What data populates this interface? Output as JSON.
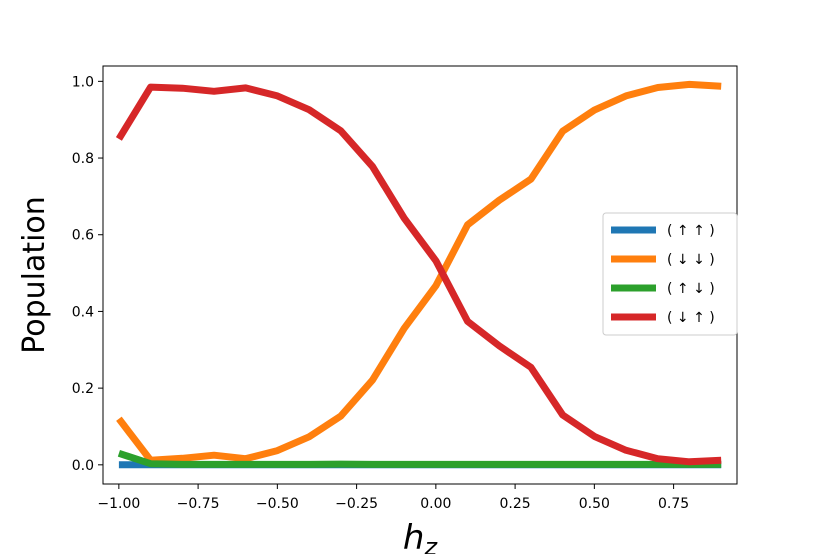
{
  "chart_data": {
    "type": "line",
    "xlabel": "h_z",
    "ylabel": "Population",
    "xlim": [
      -1.05,
      0.95
    ],
    "ylim": [
      -0.05,
      1.04
    ],
    "x_ticks": [
      -1.0,
      -0.75,
      -0.5,
      -0.25,
      0.0,
      0.25,
      0.5,
      0.75
    ],
    "x_tick_labels": [
      "−1.00",
      "−0.75",
      "−0.50",
      "−0.25",
      "0.00",
      "0.25",
      "0.50",
      "0.75"
    ],
    "y_ticks": [
      0.0,
      0.2,
      0.4,
      0.6,
      0.8,
      1.0
    ],
    "y_tick_labels": [
      "0.0",
      "0.2",
      "0.4",
      "0.6",
      "0.8",
      "1.0"
    ],
    "grid": false,
    "legend_position": "center-right",
    "x": [
      -1.0,
      -0.9,
      -0.8,
      -0.7,
      -0.6,
      -0.5,
      -0.4,
      -0.3,
      -0.2,
      -0.1,
      0.0,
      0.1,
      0.2,
      0.3,
      0.4,
      0.5,
      0.6,
      0.7,
      0.8,
      0.9
    ],
    "series": [
      {
        "name": "( ↑ ↑ )",
        "color": "#1f77b4",
        "values": [
          0.0,
          0.0,
          0.0,
          0.0,
          0.0,
          0.0,
          0.0,
          0.0,
          0.0,
          0.0,
          0.0,
          0.0,
          0.0,
          0.0,
          0.0,
          0.0,
          0.0,
          0.0,
          0.0,
          0.0
        ]
      },
      {
        "name": "( ↓ ↓ )",
        "color": "#ff7f0e",
        "values": [
          0.12,
          0.012,
          0.017,
          0.025,
          0.016,
          0.037,
          0.073,
          0.127,
          0.221,
          0.356,
          0.467,
          0.626,
          0.69,
          0.745,
          0.87,
          0.925,
          0.962,
          0.984,
          0.992,
          0.987
        ]
      },
      {
        "name": "( ↑ ↓ )",
        "color": "#2ca02c",
        "values": [
          0.03,
          0.003,
          0.001,
          0.001,
          0.001,
          0.001,
          0.001,
          0.002,
          0.001,
          0.001,
          0.001,
          0.001,
          0.001,
          0.001,
          0.001,
          0.001,
          0.001,
          0.001,
          0.001,
          0.001
        ]
      },
      {
        "name": "( ↓ ↑ )",
        "color": "#d62728",
        "values": [
          0.85,
          0.985,
          0.982,
          0.974,
          0.983,
          0.962,
          0.926,
          0.871,
          0.778,
          0.643,
          0.532,
          0.374,
          0.31,
          0.254,
          0.13,
          0.074,
          0.038,
          0.016,
          0.008,
          0.012
        ]
      }
    ]
  }
}
